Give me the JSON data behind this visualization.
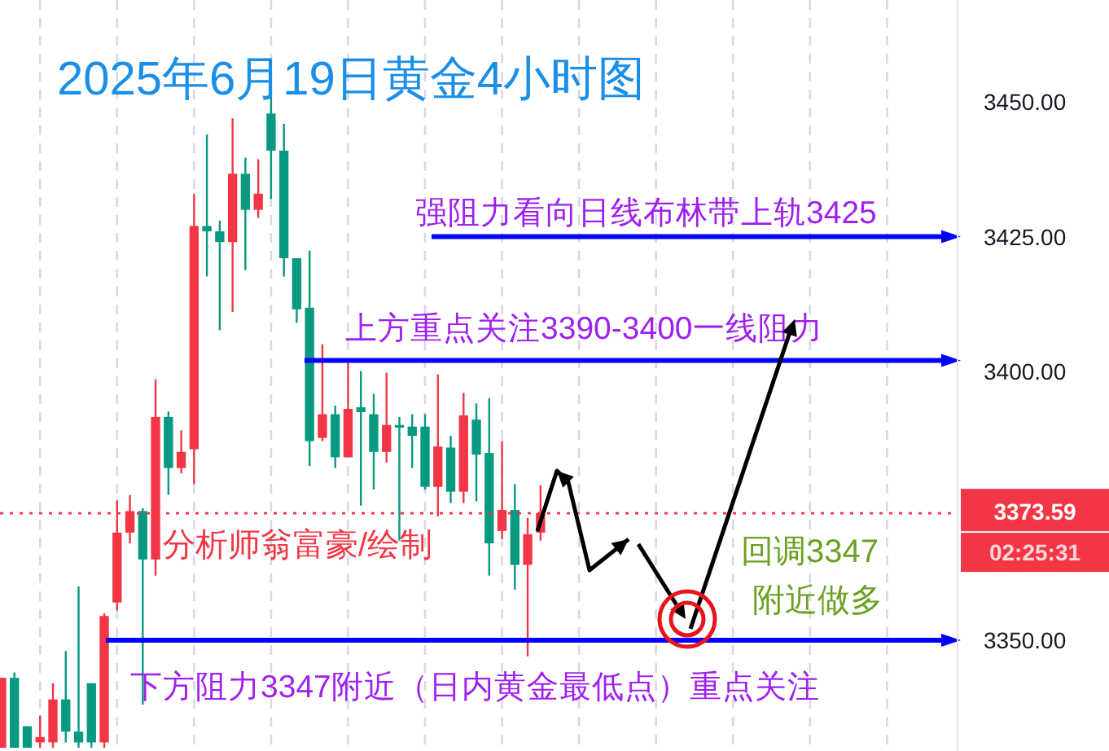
{
  "chart_data": {
    "type": "candlestick",
    "title": "2025年6月19日黄金4小时图",
    "categories": [
      null,
      null,
      null,
      null,
      null,
      null,
      null,
      null,
      null,
      null,
      null,
      null,
      null,
      null,
      null,
      null,
      null,
      null,
      null,
      null,
      null,
      null,
      null,
      null,
      null,
      null,
      null,
      null,
      null,
      null,
      null,
      null,
      null,
      null,
      null,
      null,
      null,
      null,
      null,
      null,
      null,
      null,
      null,
      null,
      null,
      null,
      null,
      null,
      null,
      null,
      null,
      null,
      null,
      null,
      null,
      null,
      null,
      null,
      null,
      null,
      null,
      null,
      null,
      null,
      null,
      null,
      null,
      null,
      null,
      null,
      null,
      null,
      null,
      null,
      null
    ],
    "ohlc": [
      [
        3330,
        3343,
        3330,
        3343
      ],
      [
        3343,
        3344,
        3330,
        3330
      ],
      [
        3334,
        3334,
        3330,
        3330
      ],
      [
        3331,
        3336,
        3330,
        3332
      ],
      [
        3331,
        3342,
        3330,
        3339
      ],
      [
        3339,
        3348,
        3331,
        3333
      ],
      [
        3333,
        3360,
        3330,
        3331
      ],
      [
        3342,
        3342,
        3330,
        3331
      ],
      [
        3331,
        3355,
        3330,
        3354.5
      ],
      [
        3357,
        3376,
        3355.5,
        3370
      ],
      [
        3370,
        3377,
        3368,
        3374
      ],
      [
        3374,
        3374.5,
        3338,
        3365
      ],
      [
        3365,
        3398.5,
        3362,
        3391.5
      ],
      [
        3391.5,
        3392.5,
        3377,
        3382
      ],
      [
        3382,
        3389,
        3381,
        3385
      ],
      [
        3385.5,
        3433,
        3379,
        3427
      ],
      [
        3427,
        3444,
        3417.6,
        3426
      ],
      [
        3426,
        3428,
        3407.6,
        3424
      ],
      [
        3424,
        3447,
        3411,
        3436.7
      ],
      [
        3436.7,
        3439.7,
        3418.8,
        3430
      ],
      [
        3430,
        3439.4,
        3428.5,
        3433
      ],
      [
        3447.9,
        3452,
        3432,
        3441
      ],
      [
        3441,
        3446,
        3417.6,
        3421
      ],
      [
        3421,
        3421,
        3409,
        3411.5
      ],
      [
        3411.8,
        3422.4,
        3382.4,
        3387
      ],
      [
        3387.6,
        3405,
        3387,
        3392
      ],
      [
        3392,
        3393.6,
        3382,
        3384
      ],
      [
        3384,
        3402,
        3384,
        3393
      ],
      [
        3393.3,
        3400,
        3375,
        3392.4
      ],
      [
        3392,
        3395.8,
        3378,
        3385
      ],
      [
        3385,
        3399.7,
        3383,
        3390
      ],
      [
        3390,
        3391.5,
        3368.5,
        3389.5
      ],
      [
        3389.7,
        3392,
        3382,
        3388
      ],
      [
        3389.7,
        3392,
        3378,
        3378.5
      ],
      [
        3378.5,
        3399.4,
        3373,
        3386
      ],
      [
        3385.8,
        3388,
        3375.5,
        3377.6
      ],
      [
        3377.6,
        3396,
        3375.5,
        3391.8
      ],
      [
        3391,
        3394,
        3375.8,
        3384.5
      ],
      [
        3384.8,
        3395,
        3362,
        3368
      ],
      [
        3370.3,
        3387,
        3368.8,
        3374.2
      ],
      [
        3374.2,
        3379,
        3359.4,
        3364
      ],
      [
        3364,
        3372.7,
        3347,
        3369.7
      ],
      [
        3370,
        3378.8,
        3368.5,
        3373.59
      ],
      null,
      null,
      null,
      null,
      null,
      null,
      null,
      null,
      null,
      null,
      null,
      null,
      null,
      null,
      null,
      null,
      null,
      null,
      null,
      null,
      null,
      null,
      null,
      null,
      null,
      null,
      null,
      null,
      null,
      null,
      null,
      null
    ],
    "colors": [
      "#f23645",
      "#089981",
      "#089981",
      "#f23645",
      "#f23645",
      "#089981",
      "#089981",
      "#089981",
      "#f23645",
      "#f23645",
      "#f23645",
      "#089981",
      "#f23645",
      "#089981",
      "#f23645",
      "#f23645",
      "#089981",
      "#089981",
      "#f23645",
      "#089981",
      "#f23645",
      "#089981",
      "#089981",
      "#089981",
      "#089981",
      "#f23645",
      "#089981",
      "#f23645",
      "#089981",
      "#089981",
      "#f23645",
      "#089981",
      "#089981",
      "#089981",
      "#f23645",
      "#089981",
      "#f23645",
      "#089981",
      "#089981",
      "#f23645",
      "#089981",
      "#f23645",
      "#f23645",
      null,
      null,
      null,
      null,
      null,
      null,
      null,
      null,
      null,
      null,
      null,
      null,
      null,
      null,
      null,
      null,
      null,
      null,
      null,
      null,
      null,
      null,
      null,
      null,
      null,
      null,
      null,
      null,
      null,
      null,
      null,
      null
    ],
    "ylim": [
      3329.4,
      3469
    ],
    "yticks": [
      {
        "value": 3350,
        "label": "3350.00"
      },
      {
        "value": 3400,
        "label": "3400.00"
      },
      {
        "value": 3425,
        "label": "3425.00"
      },
      {
        "value": 3450,
        "label": "3450.00"
      }
    ],
    "grid": "x",
    "ref_lines": [
      {
        "axis": "y",
        "value": 3425,
        "label": "强阻力看向日线布林带上轨3425",
        "color": "#0000ff",
        "line_style": "solid"
      },
      {
        "axis": "y",
        "value": 3402,
        "label": "上方重点关注3390-3400一线阻力",
        "color": "#0000ff",
        "line_style": "solid"
      },
      {
        "axis": "y",
        "value": 3350,
        "label": "下方阻力3347附近（日内黄金最低点）重点关注",
        "color": "#0000ff",
        "line_style": "solid"
      },
      {
        "axis": "y",
        "value": 3373.59,
        "label": "3373.59",
        "color": "#f23645",
        "line_style": "dotted"
      }
    ],
    "annotations": [
      "分析师翁富豪/绘制",
      "回调3347",
      "附近做多",
      "02:25:31"
    ]
  }
}
